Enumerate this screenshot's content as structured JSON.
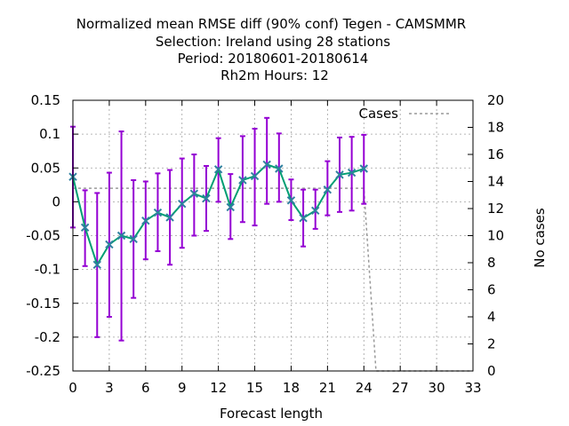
{
  "chart_data": {
    "type": "line",
    "title_lines": [
      "Normalized mean RMSE diff (90% conf) Tegen - CAMSMMR",
      "Selection: Ireland using    28 stations",
      "Period: 20180601-20180614",
      "Rh2m   Hours:  12"
    ],
    "xlabel": "Forecast length",
    "ylabel": "",
    "y2label": "No cases",
    "xlim": [
      0,
      33
    ],
    "ylim": [
      -0.25,
      0.15
    ],
    "y2lim": [
      0,
      20
    ],
    "xticks": [
      0,
      3,
      6,
      9,
      12,
      15,
      18,
      21,
      24,
      27,
      30,
      33
    ],
    "xtick_labels": [
      "0",
      "3",
      "6",
      "9",
      "12",
      "15",
      "18",
      "21",
      "24",
      "27",
      "30",
      "33"
    ],
    "yticks": [
      -0.25,
      -0.2,
      -0.15,
      -0.1,
      -0.05,
      0,
      0.05,
      0.1,
      0.15
    ],
    "ytick_labels": [
      "-0.25",
      "-0.2",
      "-0.15",
      "-0.1",
      "-0.05",
      "0",
      "0.05",
      "0.1",
      "0.15"
    ],
    "y2ticks": [
      0,
      2,
      4,
      6,
      8,
      10,
      12,
      14,
      16,
      18,
      20
    ],
    "y2tick_labels": [
      "0",
      "2",
      "4",
      "6",
      "8",
      "10",
      "12",
      "14",
      "16",
      "18",
      "20"
    ],
    "grid": true,
    "legend_position": "top-right",
    "legend": [
      "Cases"
    ],
    "colors": {
      "main_line": "#009e73",
      "markers": "#2f7f9f",
      "error_bars": "#9400d3",
      "cases": "#999999",
      "grid": "#a0a0a0"
    },
    "series": [
      {
        "x": [
          0,
          1,
          2,
          3,
          4,
          5,
          6,
          7,
          8,
          9,
          10,
          11,
          12,
          13,
          14,
          15,
          16,
          17,
          18,
          19,
          20,
          21,
          22,
          23,
          24
        ],
        "values": [
          0.037,
          -0.038,
          -0.093,
          -0.063,
          -0.05,
          -0.055,
          -0.028,
          -0.016,
          -0.023,
          -0.003,
          0.012,
          0.005,
          0.048,
          -0.008,
          0.032,
          0.038,
          0.055,
          0.049,
          0.002,
          -0.024,
          -0.013,
          0.018,
          0.04,
          0.043,
          0.049
        ],
        "error_low": [
          -0.038,
          -0.095,
          -0.2,
          -0.17,
          -0.205,
          -0.142,
          -0.085,
          -0.073,
          -0.093,
          -0.068,
          -0.05,
          -0.043,
          0.0,
          -0.055,
          -0.03,
          -0.035,
          -0.003,
          0.0,
          -0.027,
          -0.066,
          -0.04,
          -0.02,
          -0.015,
          -0.013,
          -0.003
        ]
      },
      {
        "name": "Cases",
        "x": [
          0,
          24,
          25,
          26,
          27,
          28,
          29,
          30,
          31,
          32,
          33
        ],
        "values": [
          13.5,
          13.5,
          0,
          0,
          0,
          0,
          0,
          0,
          0,
          0,
          0
        ]
      }
    ],
    "error_high": [
      0.111,
      0.017,
      0.013,
      0.043,
      0.104,
      0.032,
      0.03,
      0.042,
      0.047,
      0.064,
      0.07,
      0.053,
      0.094,
      0.041,
      0.097,
      0.108,
      0.124,
      0.101,
      0.033,
      0.018,
      0.018,
      0.06,
      0.095,
      0.096,
      0.099
    ]
  }
}
